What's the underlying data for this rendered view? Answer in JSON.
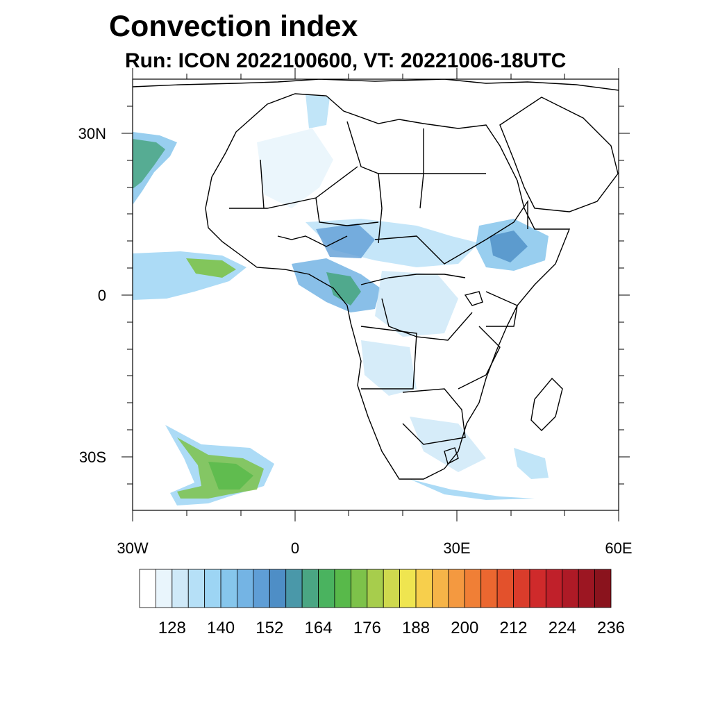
{
  "title": "Convection index",
  "subtitle": "Run: ICON 2022100600,  VT: 20221006-18UTC",
  "map": {
    "lon_range": [
      -30,
      60
    ],
    "lat_range": [
      -40,
      40
    ],
    "lat_labels": [
      "30N",
      "0",
      "30S"
    ],
    "lon_labels": [
      "30W",
      "0",
      "30E",
      "60E"
    ]
  },
  "colorbar": {
    "labels": [
      "128",
      "140",
      "152",
      "164",
      "176",
      "188",
      "200",
      "212",
      "224",
      "236"
    ],
    "colors": [
      "#ffffff",
      "#e9f5fc",
      "#cfe9f8",
      "#b6e0f7",
      "#9dd5f4",
      "#86c6ec",
      "#74b4e4",
      "#5f9ed6",
      "#4e8ec6",
      "#4a98a9",
      "#4aa683",
      "#4ab35f",
      "#58b94a",
      "#7dc24a",
      "#a7cd4c",
      "#cfd94e",
      "#efe550",
      "#f7cf4c",
      "#f6b448",
      "#f49940",
      "#f07f36",
      "#eb6730",
      "#e3512c",
      "#da3c2b",
      "#cf2a2b",
      "#c0202a",
      "#ae1a26",
      "#9c1622",
      "#8a131d"
    ]
  }
}
